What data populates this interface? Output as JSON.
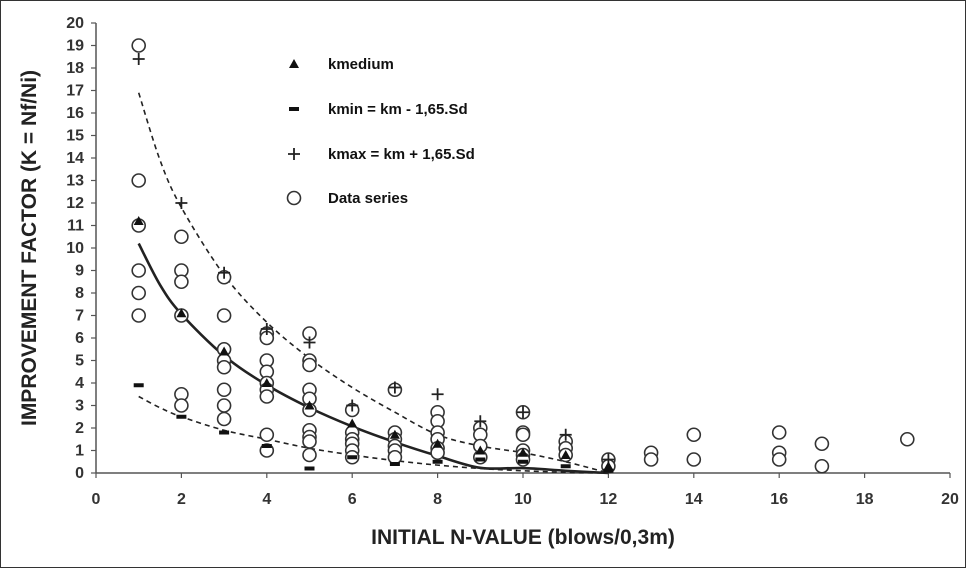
{
  "chart_data": {
    "type": "scatter",
    "xlabel": "INITIAL N-VALUE (blows/0,3m)",
    "ylabel": "IMPROVEMENT FACTOR (K = Nf/Ni)",
    "xlim": [
      0,
      20
    ],
    "ylim": [
      0,
      20
    ],
    "xticks": [
      0,
      2,
      4,
      6,
      8,
      10,
      12,
      14,
      16,
      18,
      20
    ],
    "yticks": [
      0,
      1,
      2,
      3,
      4,
      5,
      6,
      7,
      8,
      9,
      10,
      11,
      12,
      13,
      14,
      15,
      16,
      17,
      18,
      19,
      20
    ],
    "grid": false,
    "legend_position": "top-left",
    "legend": [
      {
        "marker": "triangle",
        "label": "kmedium"
      },
      {
        "marker": "dash",
        "label": "kmin = km - 1,65.Sd"
      },
      {
        "marker": "plus",
        "label": "kmax = km + 1,65.Sd"
      },
      {
        "marker": "circle",
        "label": "Data series"
      }
    ],
    "series": [
      {
        "name": "kmedium",
        "marker": "triangle",
        "points": [
          [
            1,
            11.2
          ],
          [
            2,
            7.1
          ],
          [
            3,
            5.4
          ],
          [
            4,
            4.0
          ],
          [
            5,
            3.0
          ],
          [
            6,
            2.2
          ],
          [
            7,
            1.7
          ],
          [
            8,
            1.3
          ],
          [
            9,
            1.0
          ],
          [
            10,
            0.9
          ],
          [
            11,
            0.8
          ],
          [
            12,
            0.3
          ]
        ]
      },
      {
        "name": "kmin = km - 1,65.Sd",
        "marker": "dash",
        "points": [
          [
            1,
            3.9
          ],
          [
            2,
            2.5
          ],
          [
            3,
            1.8
          ],
          [
            4,
            1.2
          ],
          [
            5,
            0.2
          ],
          [
            6,
            0.7
          ],
          [
            7,
            0.4
          ],
          [
            8,
            0.5
          ],
          [
            9,
            0.6
          ],
          [
            10,
            0.5
          ],
          [
            11,
            0.3
          ],
          [
            12,
            0.1
          ]
        ]
      },
      {
        "name": "kmax = km + 1,65.Sd",
        "marker": "plus",
        "points": [
          [
            1,
            18.4
          ],
          [
            2,
            12.0
          ],
          [
            3,
            8.9
          ],
          [
            4,
            6.4
          ],
          [
            5,
            5.8
          ],
          [
            6,
            3.0
          ],
          [
            7,
            3.8
          ],
          [
            8,
            3.5
          ],
          [
            9,
            2.3
          ],
          [
            10,
            2.7
          ],
          [
            11,
            1.7
          ],
          [
            12,
            0.6
          ]
        ]
      },
      {
        "name": "Data series",
        "marker": "circle",
        "points": [
          [
            1,
            19.0
          ],
          [
            1,
            13.0
          ],
          [
            1,
            11.0
          ],
          [
            1,
            9.0
          ],
          [
            1,
            8.0
          ],
          [
            1,
            7.0
          ],
          [
            2,
            10.5
          ],
          [
            2,
            9.0
          ],
          [
            2,
            8.5
          ],
          [
            2,
            7.0
          ],
          [
            2,
            3.5
          ],
          [
            2,
            3.0
          ],
          [
            3,
            8.7
          ],
          [
            3,
            7.0
          ],
          [
            3,
            5.5
          ],
          [
            3,
            5.0
          ],
          [
            3,
            4.7
          ],
          [
            3,
            3.7
          ],
          [
            3,
            3.0
          ],
          [
            3,
            2.4
          ],
          [
            4,
            6.2
          ],
          [
            4,
            6.0
          ],
          [
            4,
            5.0
          ],
          [
            4,
            4.5
          ],
          [
            4,
            4.0
          ],
          [
            4,
            3.7
          ],
          [
            4,
            3.4
          ],
          [
            4,
            1.7
          ],
          [
            4,
            1.0
          ],
          [
            5,
            6.2
          ],
          [
            5,
            5.0
          ],
          [
            5,
            4.8
          ],
          [
            5,
            3.7
          ],
          [
            5,
            3.3
          ],
          [
            5,
            2.8
          ],
          [
            5,
            1.9
          ],
          [
            5,
            1.6
          ],
          [
            5,
            1.4
          ],
          [
            5,
            0.8
          ],
          [
            6,
            2.8
          ],
          [
            6,
            1.8
          ],
          [
            6,
            1.5
          ],
          [
            6,
            1.3
          ],
          [
            6,
            1.0
          ],
          [
            6,
            0.7
          ],
          [
            7,
            3.7
          ],
          [
            7,
            1.8
          ],
          [
            7,
            1.5
          ],
          [
            7,
            1.2
          ],
          [
            7,
            1.0
          ],
          [
            7,
            0.7
          ],
          [
            8,
            2.7
          ],
          [
            8,
            2.3
          ],
          [
            8,
            1.8
          ],
          [
            8,
            1.5
          ],
          [
            8,
            1.1
          ],
          [
            8,
            0.9
          ],
          [
            9,
            2.0
          ],
          [
            9,
            1.7
          ],
          [
            9,
            1.2
          ],
          [
            9,
            0.7
          ],
          [
            10,
            2.7
          ],
          [
            10,
            1.8
          ],
          [
            10,
            1.7
          ],
          [
            10,
            1.0
          ],
          [
            10,
            0.8
          ],
          [
            10,
            0.6
          ],
          [
            11,
            1.4
          ],
          [
            11,
            1.1
          ],
          [
            11,
            0.8
          ],
          [
            12,
            0.6
          ],
          [
            12,
            0.3
          ],
          [
            13,
            0.9
          ],
          [
            13,
            0.6
          ],
          [
            14,
            1.7
          ],
          [
            14,
            0.6
          ],
          [
            16,
            1.8
          ],
          [
            16,
            0.9
          ],
          [
            16,
            0.6
          ],
          [
            17,
            1.3
          ],
          [
            17,
            0.3
          ],
          [
            19,
            1.5
          ]
        ]
      }
    ],
    "curves": [
      {
        "label": "kmedium",
        "style": "solid",
        "points": [
          [
            1,
            10.2
          ],
          [
            1.5,
            8.36
          ],
          [
            2,
            7.06
          ],
          [
            3,
            5.21
          ],
          [
            4,
            3.91
          ],
          [
            5,
            2.9
          ],
          [
            6,
            2.07
          ],
          [
            7,
            1.37
          ],
          [
            8,
            0.76
          ],
          [
            9,
            0.23
          ],
          [
            10,
            0.22
          ],
          [
            11,
            0.1
          ],
          [
            12,
            0.0
          ]
        ]
      },
      {
        "label": "kmax",
        "style": "dashed",
        "points": [
          [
            1,
            16.9
          ],
          [
            1.5,
            13.9
          ],
          [
            2,
            11.8
          ],
          [
            3,
            8.8
          ],
          [
            4,
            6.7
          ],
          [
            5,
            5.1
          ],
          [
            6,
            3.8
          ],
          [
            7,
            2.7
          ],
          [
            8,
            1.7
          ],
          [
            9,
            1.2
          ],
          [
            10,
            0.9
          ],
          [
            11,
            0.5
          ],
          [
            12,
            0.0
          ]
        ]
      },
      {
        "label": "kmin",
        "style": "dashed",
        "points": [
          [
            1,
            3.4
          ],
          [
            1.5,
            2.9
          ],
          [
            2,
            2.5
          ],
          [
            3,
            1.9
          ],
          [
            4,
            1.5
          ],
          [
            5,
            1.1
          ],
          [
            6,
            0.8
          ],
          [
            7,
            0.55
          ],
          [
            8,
            0.35
          ],
          [
            9,
            0.2
          ],
          [
            10,
            0.1
          ],
          [
            11,
            0.03
          ],
          [
            12,
            0.0
          ]
        ]
      }
    ]
  }
}
